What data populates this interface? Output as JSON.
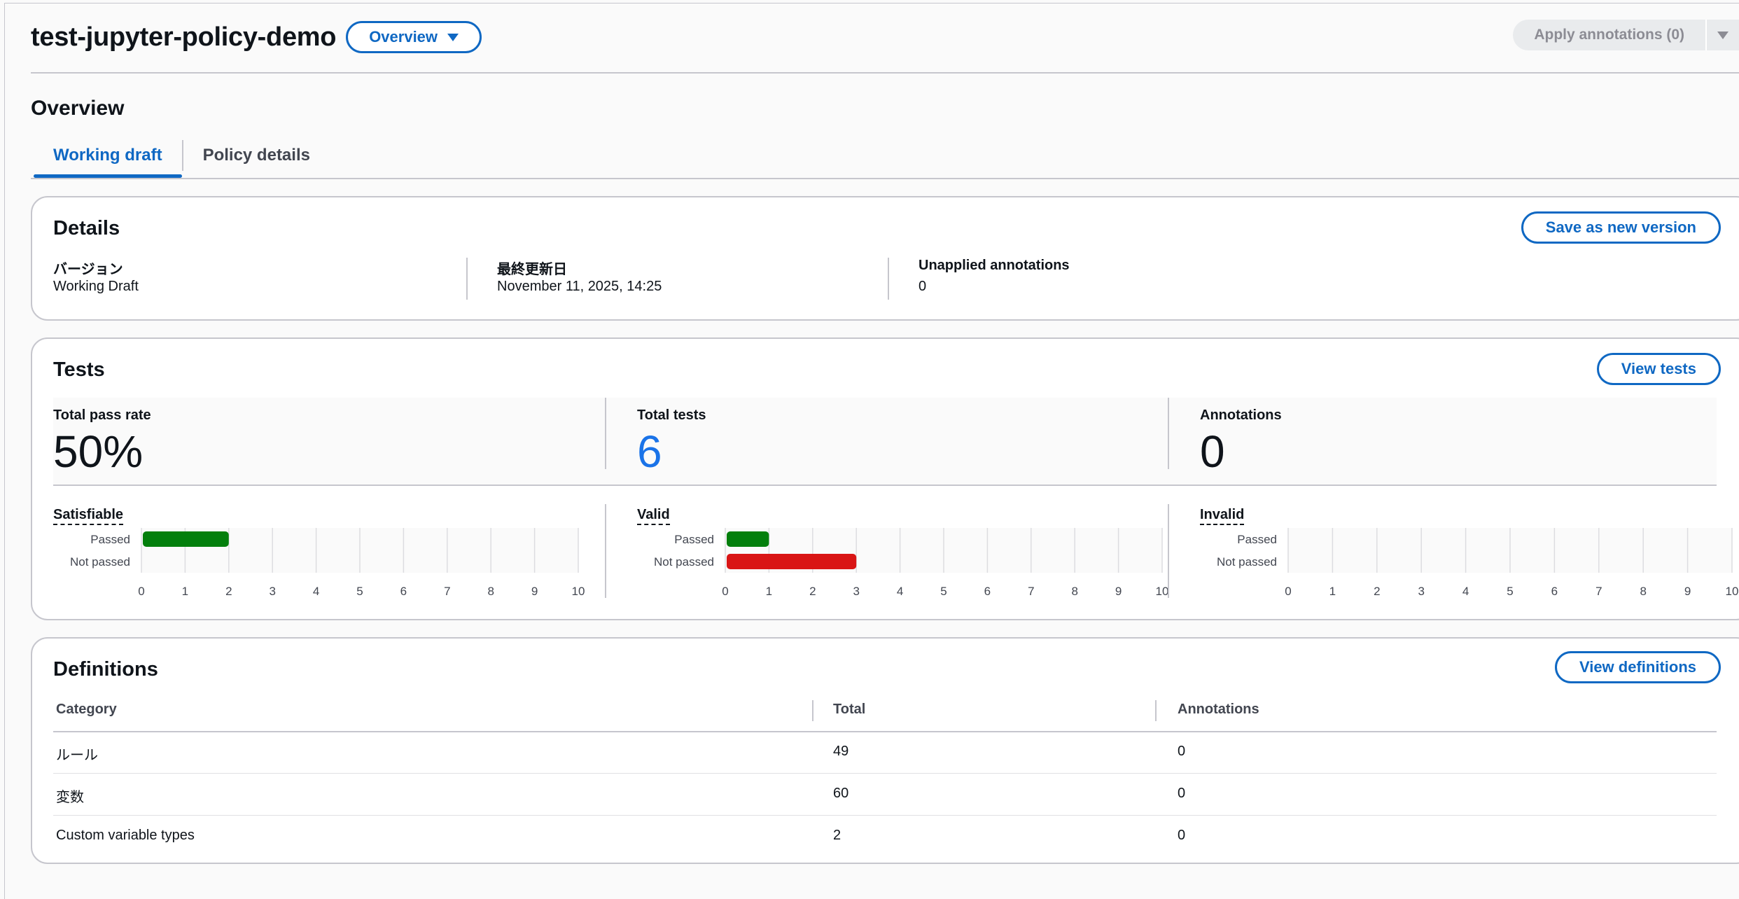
{
  "header": {
    "title": "test-jupyter-policy-demo",
    "view_dropdown": "Overview",
    "apply_button": "Apply annotations (0)"
  },
  "section_title": "Overview",
  "tabs": [
    {
      "label": "Working draft",
      "active": true
    },
    {
      "label": "Policy details",
      "active": false
    }
  ],
  "details": {
    "title": "Details",
    "action": "Save as new version",
    "fields": [
      {
        "label": "バージョン",
        "value": "Working Draft"
      },
      {
        "label": "最終更新日",
        "value": "November 11, 2025, 14:25"
      },
      {
        "label": "Unapplied annotations",
        "value": "0"
      }
    ]
  },
  "tests": {
    "title": "Tests",
    "action": "View tests",
    "stats": [
      {
        "label": "Total pass rate",
        "value": "50%"
      },
      {
        "label": "Total tests",
        "value": "6"
      },
      {
        "label": "Annotations",
        "value": "0"
      }
    ]
  },
  "chart_data": [
    {
      "type": "bar",
      "orientation": "horizontal",
      "title": "Satisfiable",
      "categories": [
        "Passed",
        "Not passed"
      ],
      "values": [
        2,
        0
      ],
      "xlim": [
        0,
        10
      ],
      "xticks": [
        "0",
        "1",
        "2",
        "3",
        "4",
        "5",
        "6",
        "7",
        "8",
        "9",
        "10"
      ],
      "colors": [
        "#037f0c",
        "#d91515"
      ],
      "grid": true
    },
    {
      "type": "bar",
      "orientation": "horizontal",
      "title": "Valid",
      "categories": [
        "Passed",
        "Not passed"
      ],
      "values": [
        1,
        3
      ],
      "xlim": [
        0,
        10
      ],
      "xticks": [
        "0",
        "1",
        "2",
        "3",
        "4",
        "5",
        "6",
        "7",
        "8",
        "9",
        "10"
      ],
      "colors": [
        "#037f0c",
        "#d91515"
      ],
      "grid": true
    },
    {
      "type": "bar",
      "orientation": "horizontal",
      "title": "Invalid",
      "categories": [
        "Passed",
        "Not passed"
      ],
      "values": [
        0,
        0
      ],
      "xlim": [
        0,
        10
      ],
      "xticks": [
        "0",
        "1",
        "2",
        "3",
        "4",
        "5",
        "6",
        "7",
        "8",
        "9",
        "10"
      ],
      "colors": [
        "#037f0c",
        "#d91515"
      ],
      "grid": true
    }
  ],
  "definitions": {
    "title": "Definitions",
    "action": "View definitions",
    "columns": [
      "Category",
      "Total",
      "Annotations"
    ],
    "rows": [
      [
        "ルール",
        "49",
        "0"
      ],
      [
        "変数",
        "60",
        "0"
      ],
      [
        "Custom variable types",
        "2",
        "0"
      ]
    ]
  }
}
